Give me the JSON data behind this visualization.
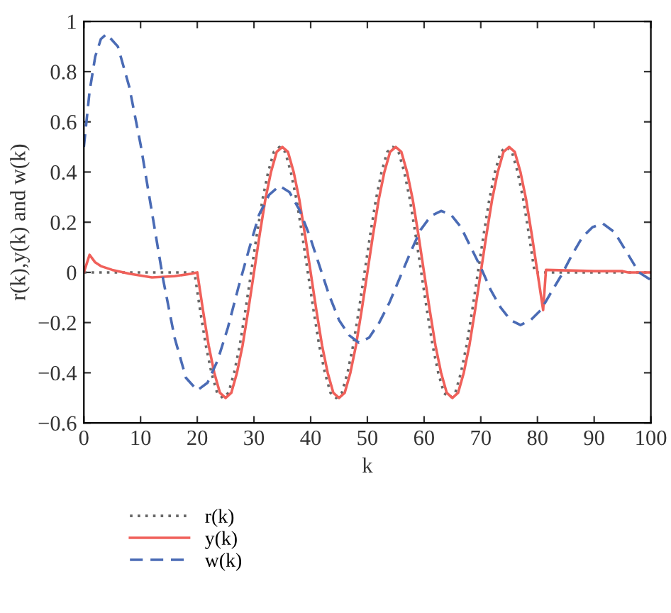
{
  "chart_data": {
    "type": "line",
    "xlabel": "k",
    "ylabel": "r(k),y(k) and w(k)",
    "xlim": [
      0,
      100
    ],
    "xticks": [
      0,
      10,
      20,
      30,
      40,
      50,
      60,
      70,
      80,
      90,
      100
    ],
    "ylim": [
      -0.6,
      1
    ],
    "yticks": [
      -0.6,
      -0.4,
      -0.2,
      0,
      0.2,
      0.4,
      0.6,
      0.8,
      1
    ],
    "grid": false,
    "legend": "bottom left",
    "marker": "none",
    "series": [
      {
        "name": "r(k)",
        "color": "#666666",
        "line_style": "dotted",
        "x": [
          0,
          19.5,
          20.5,
          21.5,
          22.5,
          23.5,
          24.5,
          25.5,
          26.5,
          27.5,
          28.5,
          29.5,
          30.5,
          31.5,
          32.5,
          33.5,
          34.5,
          35.5,
          36.5,
          37.5,
          38.5,
          39.5,
          40.5,
          41.5,
          42.5,
          43.5,
          44.5,
          45.5,
          46.5,
          47.5,
          48.5,
          49.5,
          50.5,
          51.5,
          52.5,
          53.5,
          54.5,
          55.5,
          56.5,
          57.5,
          58.5,
          59.5,
          60.5,
          61.5,
          62.5,
          63.5,
          64.5,
          65.5,
          66.5,
          67.5,
          68.5,
          69.5,
          70.5,
          71.5,
          72.5,
          73.5,
          74.5,
          75.5,
          76.5,
          77.5,
          78.5,
          79.5,
          100
        ],
        "values": [
          0,
          0,
          -0.15,
          -0.29,
          -0.4,
          -0.48,
          -0.5,
          -0.48,
          -0.4,
          -0.29,
          -0.15,
          0,
          0.15,
          0.29,
          0.4,
          0.48,
          0.5,
          0.48,
          0.4,
          0.29,
          0.15,
          0,
          -0.15,
          -0.29,
          -0.4,
          -0.48,
          -0.5,
          -0.48,
          -0.4,
          -0.29,
          -0.15,
          0,
          0.15,
          0.29,
          0.4,
          0.48,
          0.5,
          0.48,
          0.4,
          0.29,
          0.15,
          0,
          -0.15,
          -0.29,
          -0.4,
          -0.48,
          -0.5,
          -0.48,
          -0.4,
          -0.29,
          -0.15,
          0,
          0.15,
          0.29,
          0.4,
          0.48,
          0.5,
          0.48,
          0.4,
          0.29,
          0.15,
          0,
          0
        ]
      },
      {
        "name": "y(k)",
        "color": "#f0605a",
        "line_style": "solid",
        "x": [
          0,
          1,
          2,
          3,
          5,
          8,
          12,
          16,
          19,
          20,
          21,
          22,
          23,
          24,
          25,
          26,
          27,
          28,
          29,
          30,
          31,
          32,
          33,
          34,
          35,
          36,
          37,
          38,
          39,
          40,
          41,
          42,
          43,
          44,
          45,
          46,
          47,
          48,
          49,
          50,
          51,
          52,
          53,
          54,
          55,
          56,
          57,
          58,
          59,
          60,
          61,
          62,
          63,
          64,
          65,
          66,
          67,
          68,
          69,
          70,
          71,
          72,
          73,
          74,
          75,
          76,
          77,
          78,
          79,
          80,
          81,
          81.5,
          90,
          95,
          96,
          100
        ],
        "values": [
          0,
          0.07,
          0.04,
          0.025,
          0.01,
          -0.005,
          -0.02,
          -0.015,
          -0.005,
          0,
          -0.15,
          -0.29,
          -0.4,
          -0.48,
          -0.5,
          -0.48,
          -0.4,
          -0.29,
          -0.15,
          0,
          0.15,
          0.29,
          0.4,
          0.48,
          0.5,
          0.48,
          0.4,
          0.29,
          0.15,
          0,
          -0.15,
          -0.29,
          -0.4,
          -0.48,
          -0.5,
          -0.48,
          -0.4,
          -0.29,
          -0.15,
          0,
          0.15,
          0.29,
          0.4,
          0.48,
          0.5,
          0.48,
          0.4,
          0.29,
          0.15,
          0,
          -0.15,
          -0.29,
          -0.4,
          -0.48,
          -0.5,
          -0.48,
          -0.4,
          -0.29,
          -0.15,
          0,
          0.15,
          0.29,
          0.4,
          0.48,
          0.5,
          0.48,
          0.4,
          0.29,
          0.15,
          0,
          -0.15,
          0.01,
          0.005,
          0.005,
          0,
          0
        ]
      },
      {
        "name": "w(k)",
        "color": "#4a6bb5",
        "line_style": "dashed",
        "x": [
          0,
          1,
          2,
          3,
          4,
          6,
          8,
          10,
          12,
          14,
          16,
          18,
          20,
          21.8,
          23.6,
          25.4,
          27.25,
          29.1,
          30.9,
          32.7,
          34.5,
          36.25,
          38,
          39.75,
          41.5,
          43.25,
          45,
          46.75,
          48.5,
          50.3,
          52.1,
          53.9,
          55.75,
          57.6,
          59.4,
          61.2,
          63,
          64.75,
          66.5,
          68.25,
          70,
          71.75,
          73.5,
          75.25,
          77,
          78.8,
          80.6,
          82.4,
          84.25,
          86.1,
          87.9,
          89.7,
          91.5,
          93.6,
          95.75,
          97.9,
          100
        ],
        "values": [
          0.5,
          0.72,
          0.86,
          0.93,
          0.95,
          0.9,
          0.74,
          0.51,
          0.24,
          -0.03,
          -0.26,
          -0.42,
          -0.47,
          -0.44,
          -0.35,
          -0.22,
          -0.06,
          0.09,
          0.23,
          0.31,
          0.345,
          0.32,
          0.25,
          0.15,
          0.03,
          -0.09,
          -0.19,
          -0.25,
          -0.28,
          -0.26,
          -0.2,
          -0.12,
          -0.02,
          0.08,
          0.17,
          0.225,
          0.245,
          0.23,
          0.18,
          0.1,
          0.02,
          -0.07,
          -0.14,
          -0.19,
          -0.21,
          -0.19,
          -0.15,
          -0.08,
          -0.01,
          0.07,
          0.14,
          0.18,
          0.195,
          0.16,
          0.08,
          0,
          -0.03
        ]
      }
    ]
  }
}
